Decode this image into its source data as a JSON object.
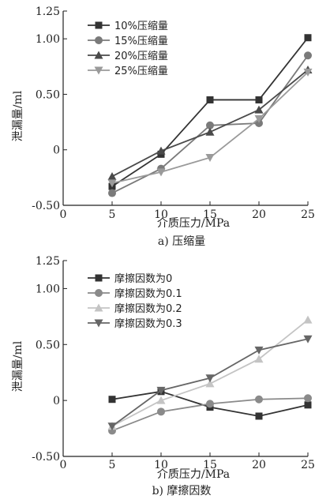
{
  "chart_data": [
    {
      "type": "line",
      "caption": "a) 压缩量",
      "xlabel": "介质压力/MPa",
      "ylabel": "泄漏量/ml",
      "x": [
        5,
        10,
        15,
        20,
        25
      ],
      "xticks": [
        "0",
        "5",
        "10",
        "15",
        "20",
        "25"
      ],
      "yticks": [
        "-0.50",
        "0",
        "0.50",
        "1.00",
        "1.25"
      ],
      "xlim": [
        0,
        25
      ],
      "ylim": [
        -0.5,
        1.25
      ],
      "legend_position": "top-left",
      "series": [
        {
          "name": "10%压缩量",
          "marker": "square",
          "color": "#333333",
          "values": [
            -0.33,
            -0.04,
            0.45,
            0.45,
            1.01
          ]
        },
        {
          "name": "15%压缩量",
          "marker": "circle",
          "color": "#7a7a7a",
          "values": [
            -0.39,
            -0.17,
            0.22,
            0.24,
            0.85
          ]
        },
        {
          "name": "20%压缩量",
          "marker": "triangle-up",
          "color": "#4a4a4a",
          "values": [
            -0.24,
            -0.01,
            0.16,
            0.36,
            0.72
          ]
        },
        {
          "name": "25%压缩量",
          "marker": "triangle-down",
          "color": "#9a9a9a",
          "values": [
            -0.3,
            -0.2,
            -0.07,
            0.28,
            0.7
          ]
        }
      ]
    },
    {
      "type": "line",
      "caption": "b) 摩擦因数",
      "xlabel": "介质压力/MPa",
      "ylabel": "泄漏量/ml",
      "x": [
        5,
        10,
        15,
        20,
        25
      ],
      "xticks": [
        "0",
        "5",
        "10",
        "15",
        "20",
        "25"
      ],
      "yticks": [
        "-0.50",
        "0",
        "0.50",
        "1.00",
        "1.25"
      ],
      "xlim": [
        0,
        25
      ],
      "ylim": [
        -0.5,
        1.25
      ],
      "legend_position": "top-left",
      "series": [
        {
          "name": "摩擦因数为0",
          "marker": "square",
          "color": "#333333",
          "values": [
            0.01,
            0.08,
            -0.06,
            -0.14,
            -0.04
          ]
        },
        {
          "name": "摩擦因数为0.1",
          "marker": "circle",
          "color": "#8a8a8a",
          "values": [
            -0.27,
            -0.1,
            -0.03,
            0.01,
            0.02
          ]
        },
        {
          "name": "摩擦因数为0.2",
          "marker": "triangle-up",
          "color": "#c4c4c4",
          "values": [
            -0.23,
            0.0,
            0.15,
            0.37,
            0.72
          ]
        },
        {
          "name": "摩擦因数为0.3",
          "marker": "triangle-down",
          "color": "#666666",
          "values": [
            -0.23,
            0.09,
            0.2,
            0.45,
            0.55
          ]
        }
      ]
    }
  ]
}
